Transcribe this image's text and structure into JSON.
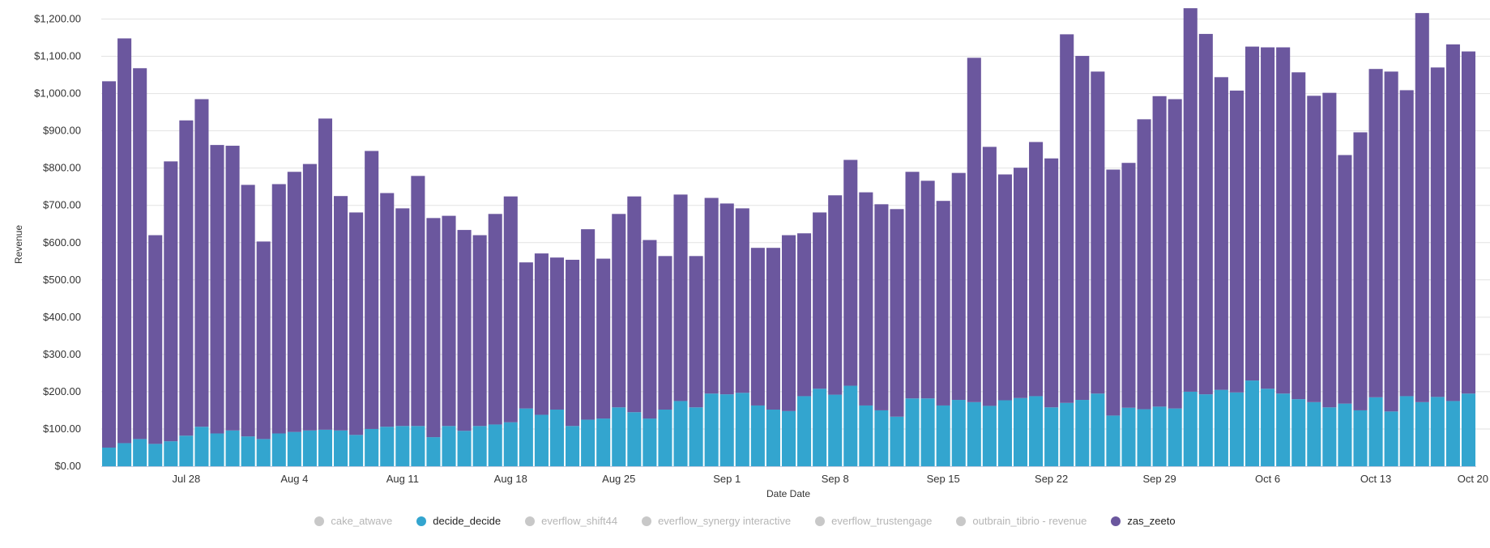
{
  "chart_data": {
    "type": "bar",
    "stacked": true,
    "xlabel": "Date Date",
    "ylabel": "Revenue",
    "ylim": [
      0,
      1200
    ],
    "yticks": [
      "$0.00",
      "$100.00",
      "$200.00",
      "$300.00",
      "$400.00",
      "$500.00",
      "$600.00",
      "$700.00",
      "$800.00",
      "$900.00",
      "$1,000.00",
      "$1,100.00",
      "$1,200.00"
    ],
    "ytick_values": [
      0,
      100,
      200,
      300,
      400,
      500,
      600,
      700,
      800,
      900,
      1000,
      1100,
      1200
    ],
    "xticks": [
      {
        "label": "Jul 28",
        "date": "Jul 28"
      },
      {
        "label": "Aug 4",
        "date": "Aug 4"
      },
      {
        "label": "Aug 11",
        "date": "Aug 11"
      },
      {
        "label": "Aug 18",
        "date": "Aug 18"
      },
      {
        "label": "Aug 25",
        "date": "Aug 25"
      },
      {
        "label": "Sep 1",
        "date": "Sep 1"
      },
      {
        "label": "Sep 8",
        "date": "Sep 8"
      },
      {
        "label": "Sep 15",
        "date": "Sep 15"
      },
      {
        "label": "Sep 22",
        "date": "Sep 22"
      },
      {
        "label": "Sep 29",
        "date": "Sep 29"
      },
      {
        "label": "Oct 6",
        "date": "Oct 6"
      },
      {
        "label": "Oct 13",
        "date": "Oct 13"
      },
      {
        "label": "Oct 20",
        "date": "Oct 20"
      }
    ],
    "grid": true,
    "legend_placement": "bottom",
    "categories": [
      "Jul 23",
      "Jul 24",
      "Jul 25",
      "Jul 26",
      "Jul 27",
      "Jul 28",
      "Jul 29",
      "Jul 30",
      "Jul 31",
      "Aug 1",
      "Aug 2",
      "Aug 3",
      "Aug 4",
      "Aug 5",
      "Aug 6",
      "Aug 7",
      "Aug 8",
      "Aug 9",
      "Aug 10",
      "Aug 11",
      "Aug 12",
      "Aug 13",
      "Aug 14",
      "Aug 15",
      "Aug 16",
      "Aug 17",
      "Aug 18",
      "Aug 19",
      "Aug 20",
      "Aug 21",
      "Aug 22",
      "Aug 23",
      "Aug 24",
      "Aug 25",
      "Aug 26",
      "Aug 27",
      "Aug 28",
      "Aug 29",
      "Aug 30",
      "Aug 31",
      "Sep 1",
      "Sep 2",
      "Sep 3",
      "Sep 4",
      "Sep 5",
      "Sep 6",
      "Sep 7",
      "Sep 8",
      "Sep 9",
      "Sep 10",
      "Sep 11",
      "Sep 12",
      "Sep 13",
      "Sep 14",
      "Sep 15",
      "Sep 16",
      "Sep 17",
      "Sep 18",
      "Sep 19",
      "Sep 20",
      "Sep 21",
      "Sep 22",
      "Sep 23",
      "Sep 24",
      "Sep 25",
      "Sep 26",
      "Sep 27",
      "Sep 28",
      "Sep 29",
      "Sep 30",
      "Oct 1",
      "Oct 2",
      "Oct 3",
      "Oct 4",
      "Oct 5",
      "Oct 6",
      "Oct 7",
      "Oct 8",
      "Oct 9",
      "Oct 10",
      "Oct 11",
      "Oct 12",
      "Oct 13",
      "Oct 14",
      "Oct 15",
      "Oct 16",
      "Oct 17",
      "Oct 18",
      "Oct 19"
    ],
    "series": [
      {
        "name": "decide_decide",
        "color": "#33a5cf",
        "values": [
          50,
          62,
          73,
          60,
          67,
          82,
          106,
          88,
          96,
          80,
          73,
          88,
          92,
          96,
          98,
          96,
          84,
          100,
          106,
          108,
          108,
          78,
          108,
          95,
          108,
          112,
          118,
          155,
          138,
          152,
          108,
          125,
          128,
          158,
          145,
          128,
          152,
          175,
          158,
          195,
          193,
          197,
          163,
          152,
          148,
          188,
          208,
          192,
          216,
          163,
          150,
          133,
          182,
          182,
          163,
          178,
          172,
          162,
          177,
          183,
          188,
          158,
          170,
          178,
          195,
          136,
          157,
          153,
          160,
          155,
          200,
          193,
          205,
          198,
          230,
          208,
          195,
          180,
          172,
          158,
          168,
          150,
          185,
          147,
          188,
          172,
          186,
          175,
          195
        ]
      },
      {
        "name": "zas_zeeto",
        "color": "#6b579e",
        "values": [
          983,
          1086,
          995,
          560,
          751,
          846,
          879,
          774,
          764,
          675,
          530,
          669,
          698,
          715,
          835,
          629,
          597,
          746,
          627,
          584,
          671,
          588,
          564,
          539,
          512,
          565,
          606,
          392,
          433,
          408,
          446,
          511,
          429,
          519,
          579,
          479,
          412,
          554,
          406,
          525,
          512,
          495,
          423,
          434,
          472,
          437,
          473,
          535,
          606,
          572,
          553,
          557,
          608,
          584,
          549,
          609,
          924,
          695,
          606,
          618,
          682,
          668,
          989,
          923,
          864,
          660,
          657,
          778,
          833,
          830,
          1029,
          967,
          839,
          810,
          896,
          916,
          929,
          877,
          822,
          844,
          667,
          746,
          881,
          912,
          821,
          1044,
          884,
          957,
          918
        ]
      }
    ]
  },
  "legend": [
    {
      "label": "cake_atwave",
      "color": "#c8c8c8",
      "active": false
    },
    {
      "label": "decide_decide",
      "color": "#33a5cf",
      "active": true
    },
    {
      "label": "everflow_shift44",
      "color": "#c8c8c8",
      "active": false
    },
    {
      "label": "everflow_synergy interactive",
      "color": "#c8c8c8",
      "active": false
    },
    {
      "label": "everflow_trustengage",
      "color": "#c8c8c8",
      "active": false
    },
    {
      "label": "outbrain_tibrio - revenue",
      "color": "#c8c8c8",
      "active": false
    },
    {
      "label": "zas_zeeto",
      "color": "#6b579e",
      "active": true
    }
  ]
}
